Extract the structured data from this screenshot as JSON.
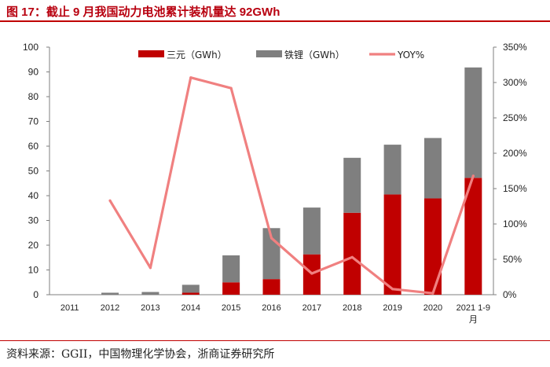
{
  "figure": {
    "title": "图 17：截止 9 月我国动力电池累计装机量达 92GWh",
    "source": "资料来源：GGII，中国物理化学协会，浙商证券研究所"
  },
  "chart_data": {
    "type": "bar",
    "stacked": true,
    "categories": [
      "2011",
      "2012",
      "2013",
      "2014",
      "2015",
      "2016",
      "2017",
      "2018",
      "2019",
      "2020",
      "2021 1-9月"
    ],
    "category_labels": [
      [
        "2011"
      ],
      [
        "2012"
      ],
      [
        "2013"
      ],
      [
        "2014"
      ],
      [
        "2015"
      ],
      [
        "2016"
      ],
      [
        "2017"
      ],
      [
        "2018"
      ],
      [
        "2019"
      ],
      [
        "2020"
      ],
      [
        "2021 1-9",
        "月"
      ]
    ],
    "series": [
      {
        "name": "三元（GWh）",
        "type": "bar",
        "axis": "left",
        "color": "#c00000",
        "values": [
          0,
          0,
          0,
          0.8,
          5,
          6.3,
          16.3,
          33.1,
          40.5,
          38.9,
          47.2
        ]
      },
      {
        "name": "铁锂（GWh）",
        "type": "bar",
        "axis": "left",
        "color": "#7f7f7f",
        "values": [
          0,
          0.8,
          1.1,
          3.2,
          10.9,
          20.6,
          18.9,
          22.2,
          20.1,
          24.4,
          44.6
        ]
      },
      {
        "name": "YOY%",
        "type": "line",
        "axis": "right",
        "color": "#f08080",
        "values": [
          null,
          133,
          38,
          307,
          292,
          80,
          30,
          53,
          8,
          2,
          168
        ]
      }
    ],
    "y_left": {
      "min": 0,
      "max": 100,
      "step": 10,
      "tick_labels": [
        "0",
        "10",
        "20",
        "30",
        "40",
        "50",
        "60",
        "70",
        "80",
        "90",
        "100"
      ]
    },
    "y_right": {
      "min": 0,
      "max": 350,
      "step": 50,
      "tick_labels": [
        "0%",
        "50%",
        "100%",
        "150%",
        "200%",
        "250%",
        "300%",
        "350%"
      ]
    },
    "legend_position": "top",
    "grid": false
  }
}
